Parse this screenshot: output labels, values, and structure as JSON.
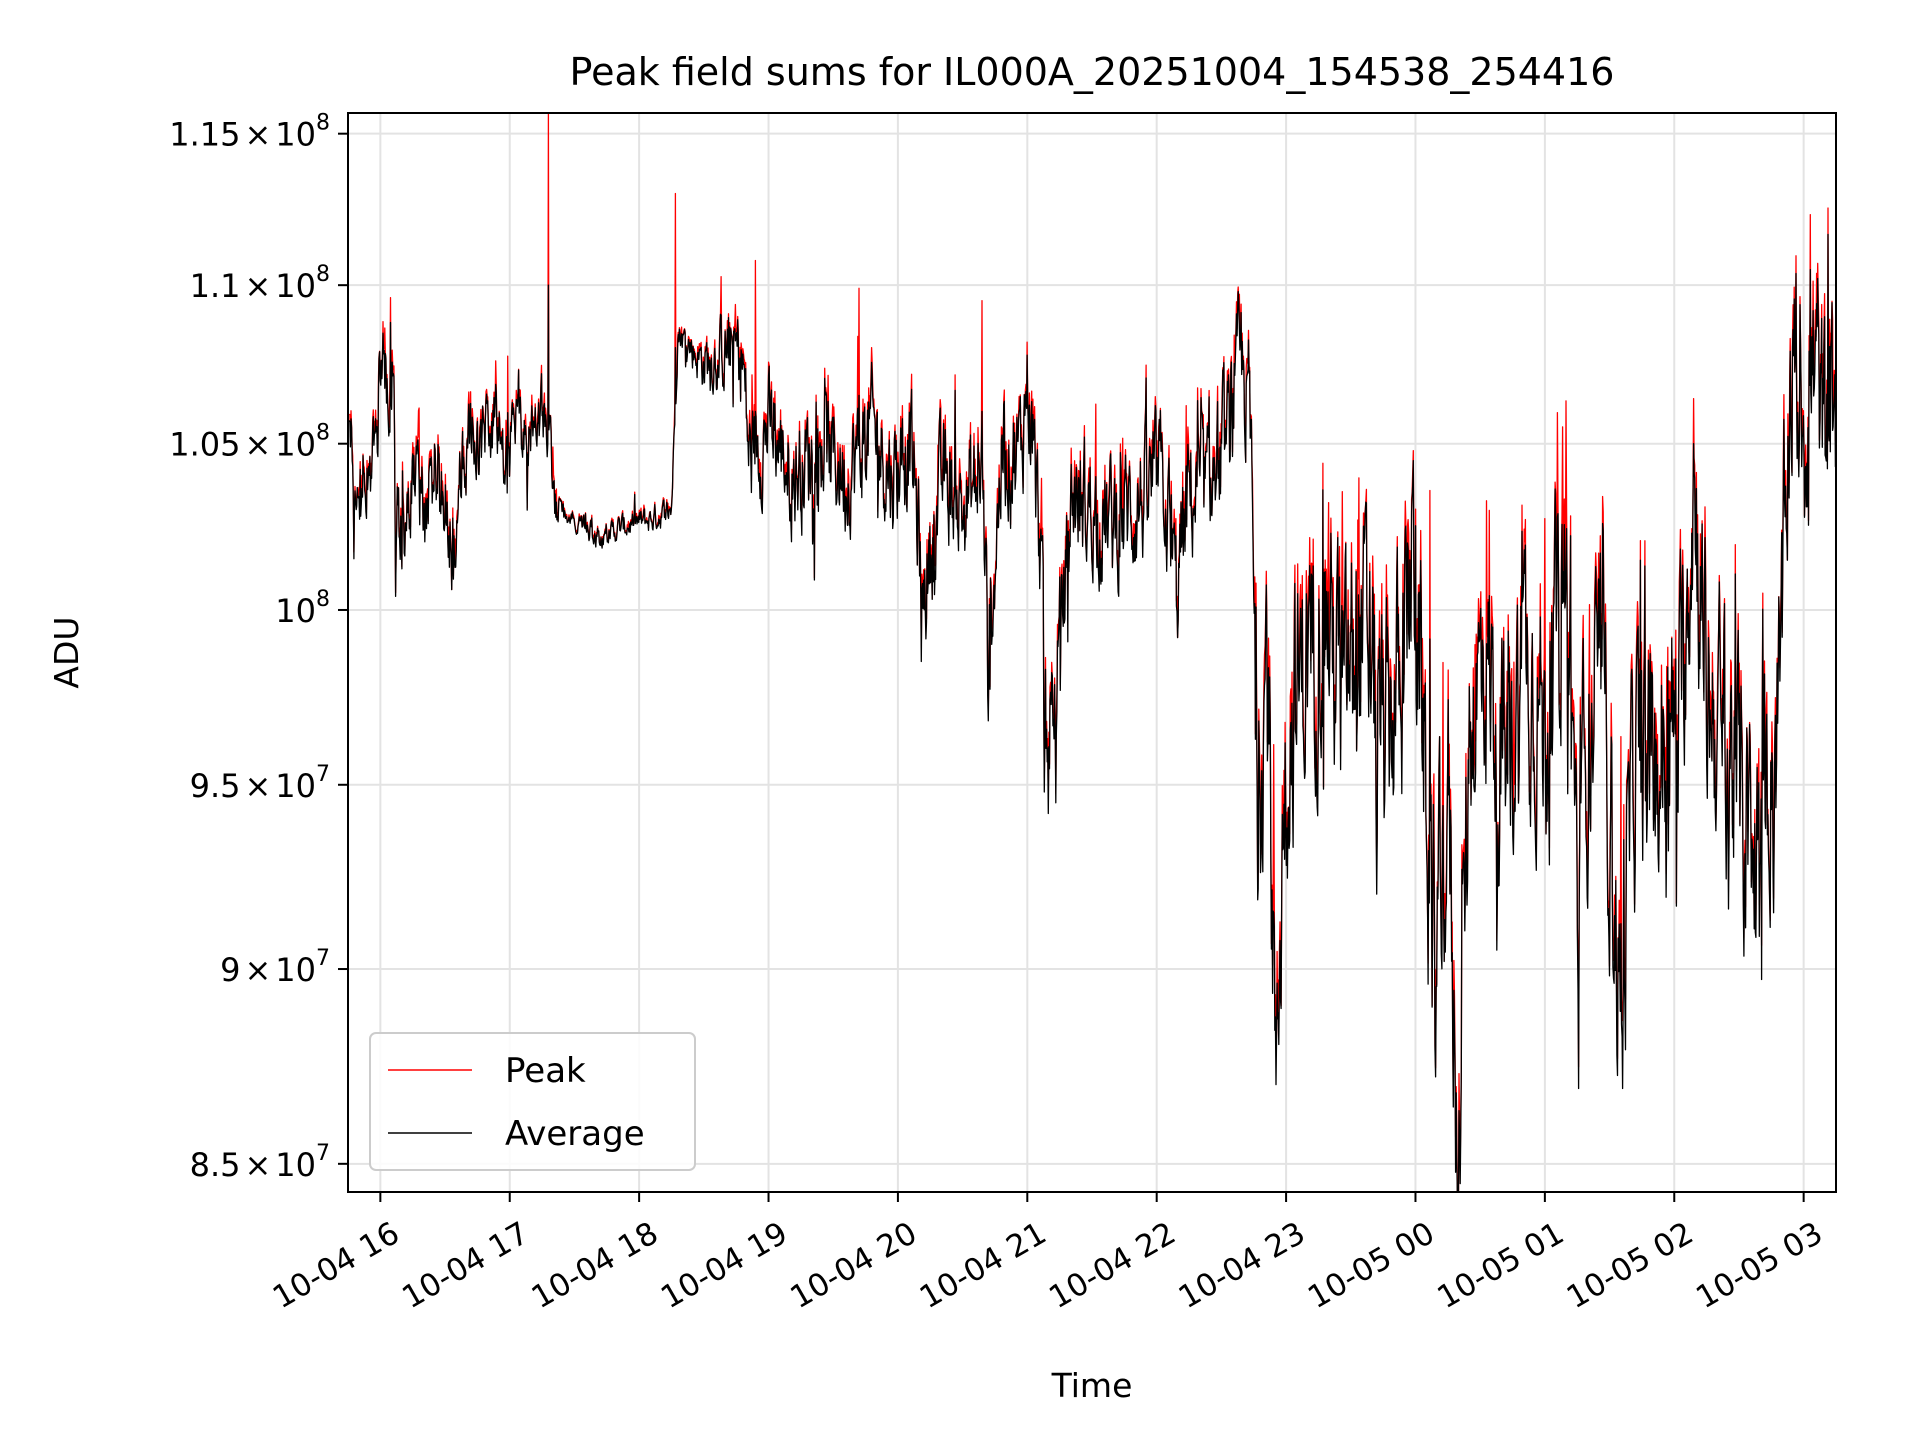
{
  "chart_data": {
    "type": "line",
    "title": "Peak field sums for IL000A_20251004_154538_254416",
    "xlabel": "Time",
    "ylabel": "ADU",
    "y_scale": "log",
    "ylim": [
      84300000,
      115700000
    ],
    "x_range_hours": [
      15.75,
      27.25
    ],
    "x_ticks": [
      {
        "hour": 16,
        "label": "10-04 16"
      },
      {
        "hour": 17,
        "label": "10-04 17"
      },
      {
        "hour": 18,
        "label": "10-04 18"
      },
      {
        "hour": 19,
        "label": "10-04 19"
      },
      {
        "hour": 20,
        "label": "10-04 20"
      },
      {
        "hour": 21,
        "label": "10-04 21"
      },
      {
        "hour": 22,
        "label": "10-04 22"
      },
      {
        "hour": 23,
        "label": "10-04 23"
      },
      {
        "hour": 24,
        "label": "10-05 00"
      },
      {
        "hour": 25,
        "label": "10-05 01"
      },
      {
        "hour": 26,
        "label": "10-05 02"
      },
      {
        "hour": 27,
        "label": "10-05 03"
      }
    ],
    "y_ticks": [
      {
        "value": 85000000,
        "mantissa": "8.5",
        "exponent": "7"
      },
      {
        "value": 90000000,
        "mantissa": "9",
        "exponent": "7"
      },
      {
        "value": 95000000,
        "mantissa": "9.5",
        "exponent": "7"
      },
      {
        "value": 100000000,
        "mantissa": "",
        "exponent": "8"
      },
      {
        "value": 105000000,
        "mantissa": "1.05",
        "exponent": "8"
      },
      {
        "value": 110000000,
        "mantissa": "1.1",
        "exponent": "8"
      },
      {
        "value": 115000000,
        "mantissa": "1.15",
        "exponent": "8"
      }
    ],
    "times_symbol": "×",
    "base_label": "10",
    "grid": true,
    "legend_position": "lower-left",
    "series": [
      {
        "name": "Peak",
        "color": "#ff0000"
      },
      {
        "name": "Average",
        "color": "#000000"
      }
    ],
    "average_anchors": [
      [
        15.76,
        105.5
      ],
      [
        15.85,
        103.6
      ],
      [
        15.95,
        104.0
      ],
      [
        16.0,
        107.5
      ],
      [
        16.1,
        106.8
      ],
      [
        16.15,
        101.5
      ],
      [
        16.25,
        104.0
      ],
      [
        16.35,
        103.0
      ],
      [
        16.45,
        104.5
      ],
      [
        16.55,
        102.0
      ],
      [
        16.65,
        104.8
      ],
      [
        16.8,
        105.5
      ],
      [
        16.95,
        105.0
      ],
      [
        17.1,
        105.5
      ],
      [
        17.2,
        105.8
      ],
      [
        17.3,
        105.4
      ],
      [
        17.35,
        103.0
      ],
      [
        17.5,
        102.6
      ],
      [
        17.7,
        102.2
      ],
      [
        17.9,
        102.5
      ],
      [
        18.1,
        102.7
      ],
      [
        18.25,
        103.0
      ],
      [
        18.3,
        108.5
      ],
      [
        18.5,
        107.5
      ],
      [
        18.7,
        108.0
      ],
      [
        18.8,
        107.7
      ],
      [
        18.85,
        104.5
      ],
      [
        19.0,
        105.5
      ],
      [
        19.2,
        104.0
      ],
      [
        19.4,
        105.0
      ],
      [
        19.6,
        104.0
      ],
      [
        19.8,
        105.5
      ],
      [
        19.95,
        104.0
      ],
      [
        20.1,
        105.0
      ],
      [
        20.2,
        100.5
      ],
      [
        20.35,
        104.0
      ],
      [
        20.5,
        103.0
      ],
      [
        20.65,
        104.0
      ],
      [
        20.7,
        98.5
      ],
      [
        20.8,
        104.5
      ],
      [
        20.95,
        104.8
      ],
      [
        21.0,
        107.0
      ],
      [
        21.1,
        102.0
      ],
      [
        21.15,
        96.0
      ],
      [
        21.25,
        99.0
      ],
      [
        21.35,
        103.5
      ],
      [
        21.5,
        103.0
      ],
      [
        21.65,
        102.5
      ],
      [
        21.8,
        103.0
      ],
      [
        21.95,
        103.5
      ],
      [
        22.05,
        104.0
      ],
      [
        22.15,
        100.5
      ],
      [
        22.25,
        103.5
      ],
      [
        22.4,
        103.5
      ],
      [
        22.55,
        105.0
      ],
      [
        22.65,
        107.5
      ],
      [
        22.72,
        106.0
      ],
      [
        22.78,
        94.5
      ],
      [
        22.85,
        99.0
      ],
      [
        22.92,
        88.0
      ],
      [
        23.0,
        96.0
      ],
      [
        23.15,
        98.5
      ],
      [
        23.3,
        100.0
      ],
      [
        23.45,
        97.5
      ],
      [
        23.6,
        99.5
      ],
      [
        23.75,
        96.0
      ],
      [
        23.9,
        98.5
      ],
      [
        23.98,
        102.0
      ],
      [
        24.05,
        97.0
      ],
      [
        24.15,
        90.0
      ],
      [
        24.25,
        95.0
      ],
      [
        24.33,
        85.0
      ],
      [
        24.42,
        97.0
      ],
      [
        24.55,
        98.5
      ],
      [
        24.7,
        95.0
      ],
      [
        24.85,
        99.0
      ],
      [
        25.0,
        96.5
      ],
      [
        25.15,
        101.5
      ],
      [
        25.25,
        93.0
      ],
      [
        25.35,
        97.0
      ],
      [
        25.45,
        98.0
      ],
      [
        25.58,
        89.0
      ],
      [
        25.7,
        96.0
      ],
      [
        25.85,
        95.5
      ],
      [
        25.95,
        96.0
      ],
      [
        26.05,
        97.0
      ],
      [
        26.15,
        104.0
      ],
      [
        26.25,
        97.5
      ],
      [
        26.4,
        96.5
      ],
      [
        26.5,
        95.0
      ],
      [
        26.62,
        92.5
      ],
      [
        26.72,
        95.0
      ],
      [
        26.82,
        97.5
      ],
      [
        26.9,
        107.5
      ],
      [
        27.0,
        106.0
      ],
      [
        27.1,
        107.5
      ],
      [
        27.15,
        105.0
      ],
      [
        27.22,
        106.5
      ],
      [
        27.25,
        104.5
      ]
    ],
    "spikes": [
      {
        "hour": 16.08,
        "avg": 108.8,
        "peak": 109.6
      },
      {
        "hour": 17.3,
        "avg": 110.0,
        "peak": 115.9
      },
      {
        "hour": 18.28,
        "avg": 108.0,
        "peak": 113.0
      },
      {
        "hour": 18.9,
        "avg": 106.0,
        "peak": 110.8
      },
      {
        "hour": 19.7,
        "avg": 106.5,
        "peak": 109.9
      },
      {
        "hour": 20.65,
        "avg": 106.0,
        "peak": 109.5
      },
      {
        "hour": 22.6,
        "avg": 107.5,
        "peak": 108.4
      },
      {
        "hour": 24.0,
        "avg": 102.5,
        "peak": 103.0
      },
      {
        "hour": 25.2,
        "avg": 102.2,
        "peak": 102.8
      },
      {
        "hour": 26.15,
        "avg": 105.0,
        "peak": 106.4
      },
      {
        "hour": 27.05,
        "avg": 110.5,
        "peak": 112.3
      },
      {
        "hour": 27.25,
        "avg": 110.5,
        "peak": 111.5
      }
    ],
    "dips": [
      {
        "hour": 16.12,
        "avg": 100.4
      },
      {
        "hour": 16.55,
        "avg": 100.6
      },
      {
        "hour": 17.0,
        "avg": 104.0
      },
      {
        "hour": 20.18,
        "avg": 98.5
      },
      {
        "hour": 20.7,
        "avg": 96.8
      },
      {
        "hour": 21.13,
        "avg": 94.8
      },
      {
        "hour": 21.22,
        "avg": 94.5
      },
      {
        "hour": 22.92,
        "avg": 87.0
      },
      {
        "hour": 23.7,
        "avg": 92.0
      },
      {
        "hour": 24.13,
        "avg": 89.0
      },
      {
        "hour": 24.33,
        "avg": 84.3
      },
      {
        "hour": 24.63,
        "avg": 90.5
      },
      {
        "hour": 25.26,
        "avg": 86.9
      },
      {
        "hour": 25.6,
        "avg": 86.9
      },
      {
        "hour": 26.42,
        "avg": 91.6
      },
      {
        "hour": 26.77,
        "avg": 91.5
      }
    ],
    "noise_amplitude": [
      [
        15.75,
        1.2
      ],
      [
        17.3,
        1.0
      ],
      [
        17.4,
        0.25
      ],
      [
        18.3,
        0.35
      ],
      [
        18.85,
        1.3
      ],
      [
        22.7,
        1.6
      ],
      [
        22.8,
        2.8
      ],
      [
        27.25,
        2.8
      ]
    ]
  }
}
